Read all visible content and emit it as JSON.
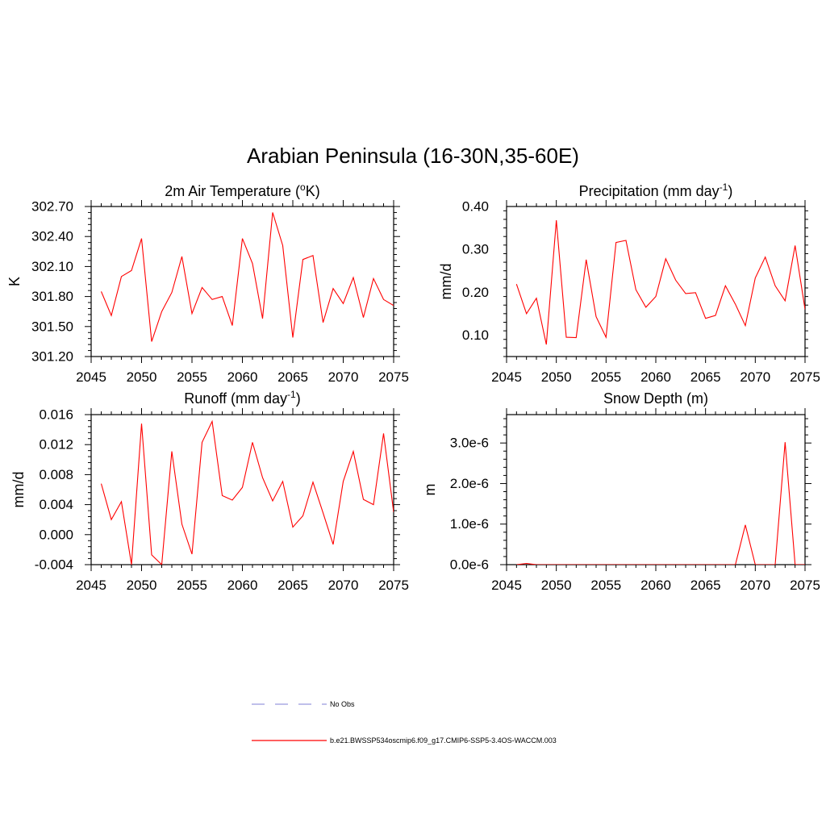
{
  "title": "Arabian Peninsula (16-30N,35-60E)",
  "colors": {
    "model": "#ff0000",
    "obs": "#9999dd"
  },
  "chart_data": [
    {
      "type": "line",
      "title": "2m Air Temperature",
      "title_unit_base": "K",
      "title_unit_sup": "o",
      "ylabel": "K",
      "xlim": [
        2045,
        2075
      ],
      "ylim": [
        301.2,
        302.7
      ],
      "xticks": [
        2045,
        2050,
        2055,
        2060,
        2065,
        2070,
        2075
      ],
      "xtick_labels": [
        "2045",
        "2050",
        "2055",
        "2060",
        "2065",
        "2070",
        "2075"
      ],
      "yticks": [
        301.2,
        301.5,
        301.8,
        302.1,
        302.4,
        302.7
      ],
      "ytick_labels": [
        "301.20",
        "301.50",
        "301.80",
        "302.10",
        "302.40",
        "302.70"
      ],
      "x": [
        2046,
        2047,
        2048,
        2049,
        2050,
        2051,
        2052,
        2053,
        2054,
        2055,
        2056,
        2057,
        2058,
        2059,
        2060,
        2061,
        2062,
        2063,
        2064,
        2065,
        2066,
        2067,
        2068,
        2069,
        2070,
        2071,
        2072,
        2073,
        2074,
        2075
      ],
      "values": [
        301.85,
        301.61,
        302.0,
        302.06,
        302.38,
        301.35,
        301.65,
        301.84,
        302.2,
        301.63,
        301.89,
        301.77,
        301.8,
        301.51,
        302.38,
        302.13,
        301.58,
        302.64,
        302.31,
        301.39,
        302.17,
        302.21,
        301.54,
        301.88,
        301.73,
        301.99,
        301.59,
        301.98,
        301.77,
        301.71
      ]
    },
    {
      "type": "line",
      "title": "Precipitation (mm day",
      "title_sup": "-1",
      "title_close": ")",
      "ylabel": "mm/d",
      "xlim": [
        2045,
        2075
      ],
      "ylim": [
        0.05,
        0.4
      ],
      "xticks": [
        2045,
        2050,
        2055,
        2060,
        2065,
        2070,
        2075
      ],
      "xtick_labels": [
        "2045",
        "2050",
        "2055",
        "2060",
        "2065",
        "2070",
        "2075"
      ],
      "yticks": [
        0.1,
        0.2,
        0.3,
        0.4
      ],
      "ytick_labels": [
        "0.10",
        "0.20",
        "0.30",
        "0.40"
      ],
      "x": [
        2046,
        2047,
        2048,
        2049,
        2050,
        2051,
        2052,
        2053,
        2054,
        2055,
        2056,
        2057,
        2058,
        2059,
        2060,
        2061,
        2062,
        2063,
        2064,
        2065,
        2066,
        2067,
        2068,
        2069,
        2070,
        2071,
        2072,
        2073,
        2074,
        2075
      ],
      "values": [
        0.219,
        0.15,
        0.186,
        0.078,
        0.368,
        0.095,
        0.094,
        0.276,
        0.143,
        0.095,
        0.316,
        0.321,
        0.206,
        0.165,
        0.19,
        0.278,
        0.228,
        0.197,
        0.199,
        0.139,
        0.146,
        0.215,
        0.172,
        0.122,
        0.233,
        0.282,
        0.215,
        0.18,
        0.309,
        0.16
      ]
    },
    {
      "type": "line",
      "title": "Runoff (mm day",
      "title_sup": "-1",
      "title_close": ")",
      "ylabel": "mm/d",
      "xlim": [
        2045,
        2075
      ],
      "ylim": [
        -0.004,
        0.016
      ],
      "xticks": [
        2045,
        2050,
        2055,
        2060,
        2065,
        2070,
        2075
      ],
      "xtick_labels": [
        "2045",
        "2050",
        "2055",
        "2060",
        "2065",
        "2070",
        "2075"
      ],
      "yticks": [
        -0.004,
        0.0,
        0.004,
        0.008,
        0.012,
        0.016
      ],
      "ytick_labels": [
        "-0.004",
        "0.000",
        "0.004",
        "0.008",
        "0.012",
        "0.016"
      ],
      "x": [
        2046,
        2047,
        2048,
        2049,
        2050,
        2051,
        2052,
        2053,
        2054,
        2055,
        2056,
        2057,
        2058,
        2059,
        2060,
        2061,
        2062,
        2063,
        2064,
        2065,
        2066,
        2067,
        2068,
        2069,
        2070,
        2071,
        2072,
        2073,
        2074,
        2075
      ],
      "values": [
        0.0068,
        0.002,
        0.0044,
        -0.004,
        0.0148,
        -0.0027,
        -0.004,
        0.0111,
        0.0014,
        -0.0026,
        0.0123,
        0.0151,
        0.0052,
        0.0046,
        0.0063,
        0.0123,
        0.0076,
        0.0045,
        0.0071,
        0.001,
        0.0025,
        0.007,
        0.0029,
        -0.0013,
        0.0071,
        0.0111,
        0.0047,
        0.004,
        0.0135,
        0.003
      ]
    },
    {
      "type": "line",
      "title": "Snow Depth (m)",
      "ylabel": "m",
      "xlim": [
        2045,
        2075
      ],
      "ylim": [
        0.0,
        3.7e-06
      ],
      "xticks": [
        2045,
        2050,
        2055,
        2060,
        2065,
        2070,
        2075
      ],
      "xtick_labels": [
        "2045",
        "2050",
        "2055",
        "2060",
        "2065",
        "2070",
        "2075"
      ],
      "yticks": [
        0.0,
        1e-06,
        2e-06,
        3e-06
      ],
      "ytick_labels": [
        "0.0e-6",
        "1.0e-6",
        "2.0e-6",
        "3.0e-6"
      ],
      "x": [
        2046,
        2047,
        2048,
        2049,
        2050,
        2051,
        2052,
        2053,
        2054,
        2055,
        2056,
        2057,
        2058,
        2059,
        2060,
        2061,
        2062,
        2063,
        2064,
        2065,
        2066,
        2067,
        2068,
        2069,
        2070,
        2071,
        2072,
        2073,
        2074,
        2075
      ],
      "values": [
        0,
        3e-08,
        0,
        0,
        0,
        0,
        0,
        0,
        0,
        0,
        0,
        0,
        0,
        0,
        0,
        0,
        0,
        0,
        0,
        0,
        0,
        0,
        0,
        9.8e-07,
        0,
        0,
        0,
        3.02e-06,
        0,
        0
      ]
    }
  ],
  "legend": [
    {
      "label": "No Obs",
      "style": "dashed",
      "color": "#9999dd"
    },
    {
      "label": "b.e21.BWSSP534oscmip6.f09_g17.CMIP6-SSP5-3.4OS-WACCM.003",
      "style": "solid",
      "color": "#ff0000"
    }
  ]
}
